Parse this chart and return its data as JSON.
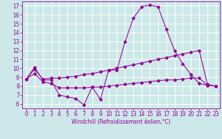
{
  "xlabel": "Windchill (Refroidissement éolien,°C)",
  "background_color": "#cce8e8",
  "grid_color": "#ffffff",
  "line_color": "#990099",
  "xlim": [
    -0.5,
    23.5
  ],
  "ylim": [
    5.5,
    17.5
  ],
  "xticks": [
    0,
    1,
    2,
    3,
    4,
    5,
    6,
    7,
    8,
    9,
    10,
    11,
    12,
    13,
    14,
    15,
    16,
    17,
    18,
    19,
    20,
    21,
    22,
    23
  ],
  "yticks": [
    6,
    7,
    8,
    9,
    10,
    11,
    12,
    13,
    14,
    15,
    16,
    17
  ],
  "curve1_x": [
    0,
    1,
    2,
    3,
    4,
    5,
    6,
    7,
    8,
    9,
    10,
    11,
    12,
    13,
    14,
    15,
    16,
    17,
    18,
    19,
    20,
    21,
    22,
    23
  ],
  "curve1_y": [
    8.8,
    10.1,
    8.7,
    8.7,
    7.0,
    6.8,
    6.6,
    5.9,
    7.9,
    6.5,
    9.8,
    9.8,
    13.0,
    15.6,
    16.9,
    17.1,
    16.9,
    14.4,
    12.0,
    10.5,
    9.3,
    8.3,
    8.1,
    8.0
  ],
  "curve2_x": [
    0,
    1,
    2,
    3,
    4,
    5,
    6,
    7,
    8,
    9,
    10,
    11,
    12,
    13,
    14,
    15,
    16,
    17,
    18,
    19,
    20,
    21,
    22,
    23
  ],
  "curve2_y": [
    8.8,
    9.9,
    8.8,
    8.9,
    8.9,
    9.0,
    9.1,
    9.3,
    9.4,
    9.6,
    9.8,
    10.0,
    10.2,
    10.4,
    10.6,
    10.8,
    11.0,
    11.2,
    11.4,
    11.6,
    11.8,
    12.0,
    8.2,
    8.0
  ],
  "curve3_x": [
    0,
    1,
    2,
    3,
    4,
    5,
    6,
    7,
    8,
    9,
    10,
    11,
    12,
    13,
    14,
    15,
    16,
    17,
    18,
    19,
    20,
    21,
    22,
    23
  ],
  "curve3_y": [
    8.8,
    9.4,
    8.5,
    8.3,
    7.8,
    7.8,
    7.8,
    7.8,
    7.9,
    7.9,
    8.0,
    8.1,
    8.2,
    8.3,
    8.4,
    8.5,
    8.6,
    8.7,
    8.7,
    8.8,
    8.9,
    8.9,
    8.1,
    8.0
  ],
  "tick_fontsize": 5.5,
  "xlabel_fontsize": 5.5,
  "marker_size": 2.0,
  "linewidth": 0.8
}
